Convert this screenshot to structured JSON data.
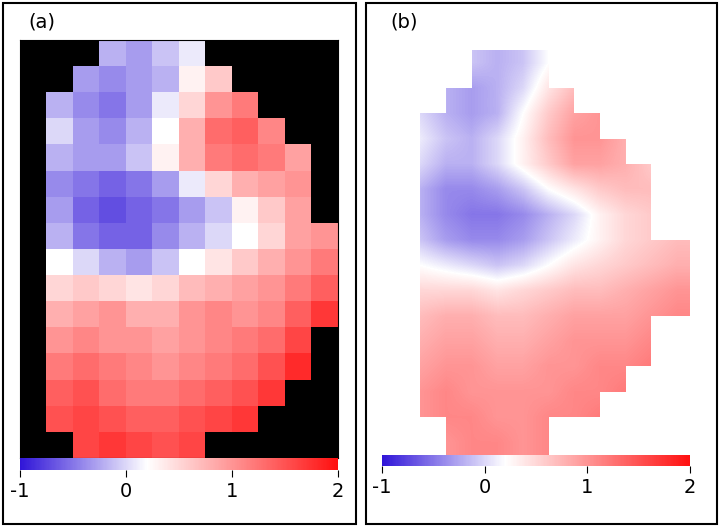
{
  "chart_data": [
    {
      "type": "heatmap",
      "title": "(a)",
      "tick_labels": false,
      "cells": [
        [
          null,
          null,
          null,
          -0.2,
          -0.3,
          -0.1,
          0.1,
          null,
          null,
          null,
          null,
          null
        ],
        [
          null,
          null,
          -0.3,
          -0.4,
          -0.3,
          -0.2,
          0.3,
          0.6,
          null,
          null,
          null,
          null
        ],
        [
          null,
          -0.2,
          -0.4,
          -0.5,
          -0.3,
          0.1,
          0.5,
          1.0,
          1.2,
          null,
          null,
          null
        ],
        [
          null,
          0.0,
          -0.3,
          -0.4,
          -0.2,
          0.2,
          0.8,
          1.3,
          1.4,
          1.1,
          null,
          null
        ],
        [
          null,
          -0.2,
          -0.3,
          -0.3,
          -0.1,
          0.3,
          0.8,
          1.2,
          1.3,
          1.2,
          0.9,
          null
        ],
        [
          null,
          -0.4,
          -0.5,
          -0.6,
          -0.5,
          -0.3,
          0.1,
          0.5,
          0.8,
          0.9,
          1.0,
          null
        ],
        [
          null,
          -0.3,
          -0.6,
          -0.7,
          -0.6,
          -0.5,
          -0.3,
          -0.1,
          0.3,
          0.6,
          0.9,
          null
        ],
        [
          null,
          -0.2,
          -0.5,
          -0.6,
          -0.6,
          -0.4,
          -0.2,
          0.0,
          0.2,
          0.5,
          0.9,
          1.0
        ],
        [
          null,
          0.2,
          0.0,
          -0.2,
          -0.3,
          -0.1,
          0.2,
          0.4,
          0.6,
          0.8,
          1.0,
          1.2
        ],
        [
          null,
          0.5,
          0.6,
          0.5,
          0.4,
          0.5,
          0.7,
          0.8,
          0.9,
          1.0,
          1.2,
          1.4
        ],
        [
          null,
          0.8,
          0.9,
          1.0,
          0.8,
          0.8,
          1.0,
          1.1,
          1.0,
          1.1,
          1.4,
          1.7
        ],
        [
          null,
          1.0,
          1.1,
          1.0,
          1.0,
          0.9,
          1.0,
          1.1,
          1.2,
          1.3,
          1.6,
          null
        ],
        [
          null,
          1.2,
          1.3,
          1.2,
          1.1,
          1.0,
          1.1,
          1.2,
          1.3,
          1.5,
          1.8,
          null
        ],
        [
          null,
          1.4,
          1.5,
          1.3,
          1.2,
          1.2,
          1.3,
          1.4,
          1.5,
          1.7,
          null,
          null
        ],
        [
          null,
          1.5,
          1.6,
          1.5,
          1.4,
          1.4,
          1.5,
          1.6,
          1.7,
          null,
          null,
          null
        ],
        [
          null,
          null,
          1.6,
          1.7,
          1.6,
          1.5,
          1.6,
          null,
          null,
          null,
          null,
          null
        ]
      ],
      "colorbar_range": [
        -1,
        2
      ],
      "colorbar_ticks": [
        -1,
        0,
        1,
        2
      ]
    },
    {
      "type": "heatmap",
      "title": "(b)",
      "tick_labels": false,
      "cells": [
        [
          null,
          null,
          null,
          -0.1,
          -0.2,
          -0.1,
          0.2,
          null,
          null,
          null,
          null,
          null
        ],
        [
          null,
          null,
          -0.2,
          -0.3,
          -0.2,
          0.0,
          0.4,
          0.7,
          null,
          null,
          null,
          null
        ],
        [
          null,
          0.0,
          -0.2,
          -0.3,
          -0.2,
          0.2,
          0.6,
          0.9,
          1.0,
          null,
          null,
          null
        ],
        [
          null,
          0.1,
          -0.1,
          -0.2,
          0.0,
          0.3,
          0.7,
          1.0,
          1.0,
          0.8,
          null,
          null
        ],
        [
          null,
          0.0,
          -0.2,
          -0.2,
          0.0,
          0.3,
          0.6,
          0.9,
          0.9,
          0.8,
          0.6,
          null
        ],
        [
          null,
          -0.2,
          -0.4,
          -0.4,
          -0.3,
          -0.1,
          0.2,
          0.4,
          0.6,
          0.7,
          0.7,
          null
        ],
        [
          null,
          -0.2,
          -0.4,
          -0.5,
          -0.5,
          -0.4,
          -0.2,
          0.0,
          0.3,
          0.5,
          0.6,
          null
        ],
        [
          null,
          -0.1,
          -0.3,
          -0.4,
          -0.4,
          -0.3,
          -0.1,
          0.1,
          0.3,
          0.5,
          0.6,
          0.7
        ],
        [
          null,
          0.2,
          0.1,
          0.0,
          -0.1,
          0.0,
          0.2,
          0.4,
          0.5,
          0.6,
          0.7,
          0.8
        ],
        [
          null,
          0.5,
          0.5,
          0.5,
          0.4,
          0.5,
          0.6,
          0.7,
          0.7,
          0.8,
          0.9,
          1.0
        ],
        [
          null,
          0.7,
          0.8,
          0.8,
          0.7,
          0.7,
          0.8,
          0.9,
          0.9,
          0.9,
          1.0,
          1.1
        ],
        [
          null,
          0.8,
          0.9,
          0.9,
          0.8,
          0.8,
          0.9,
          1.0,
          1.0,
          1.0,
          1.1,
          null
        ],
        [
          null,
          0.9,
          1.0,
          1.0,
          0.9,
          0.9,
          1.0,
          1.0,
          1.1,
          1.1,
          1.2,
          null
        ],
        [
          null,
          1.0,
          1.1,
          1.0,
          1.0,
          1.0,
          1.0,
          1.1,
          1.1,
          1.2,
          null,
          null
        ],
        [
          null,
          1.0,
          1.1,
          1.1,
          1.0,
          1.0,
          1.1,
          1.1,
          1.2,
          null,
          null,
          null
        ],
        [
          null,
          null,
          1.0,
          1.1,
          1.1,
          1.0,
          1.1,
          null,
          null,
          null,
          null,
          null
        ]
      ],
      "colorbar_range": [
        -1,
        2
      ],
      "colorbar_ticks": [
        -1,
        0,
        1,
        2
      ]
    }
  ]
}
